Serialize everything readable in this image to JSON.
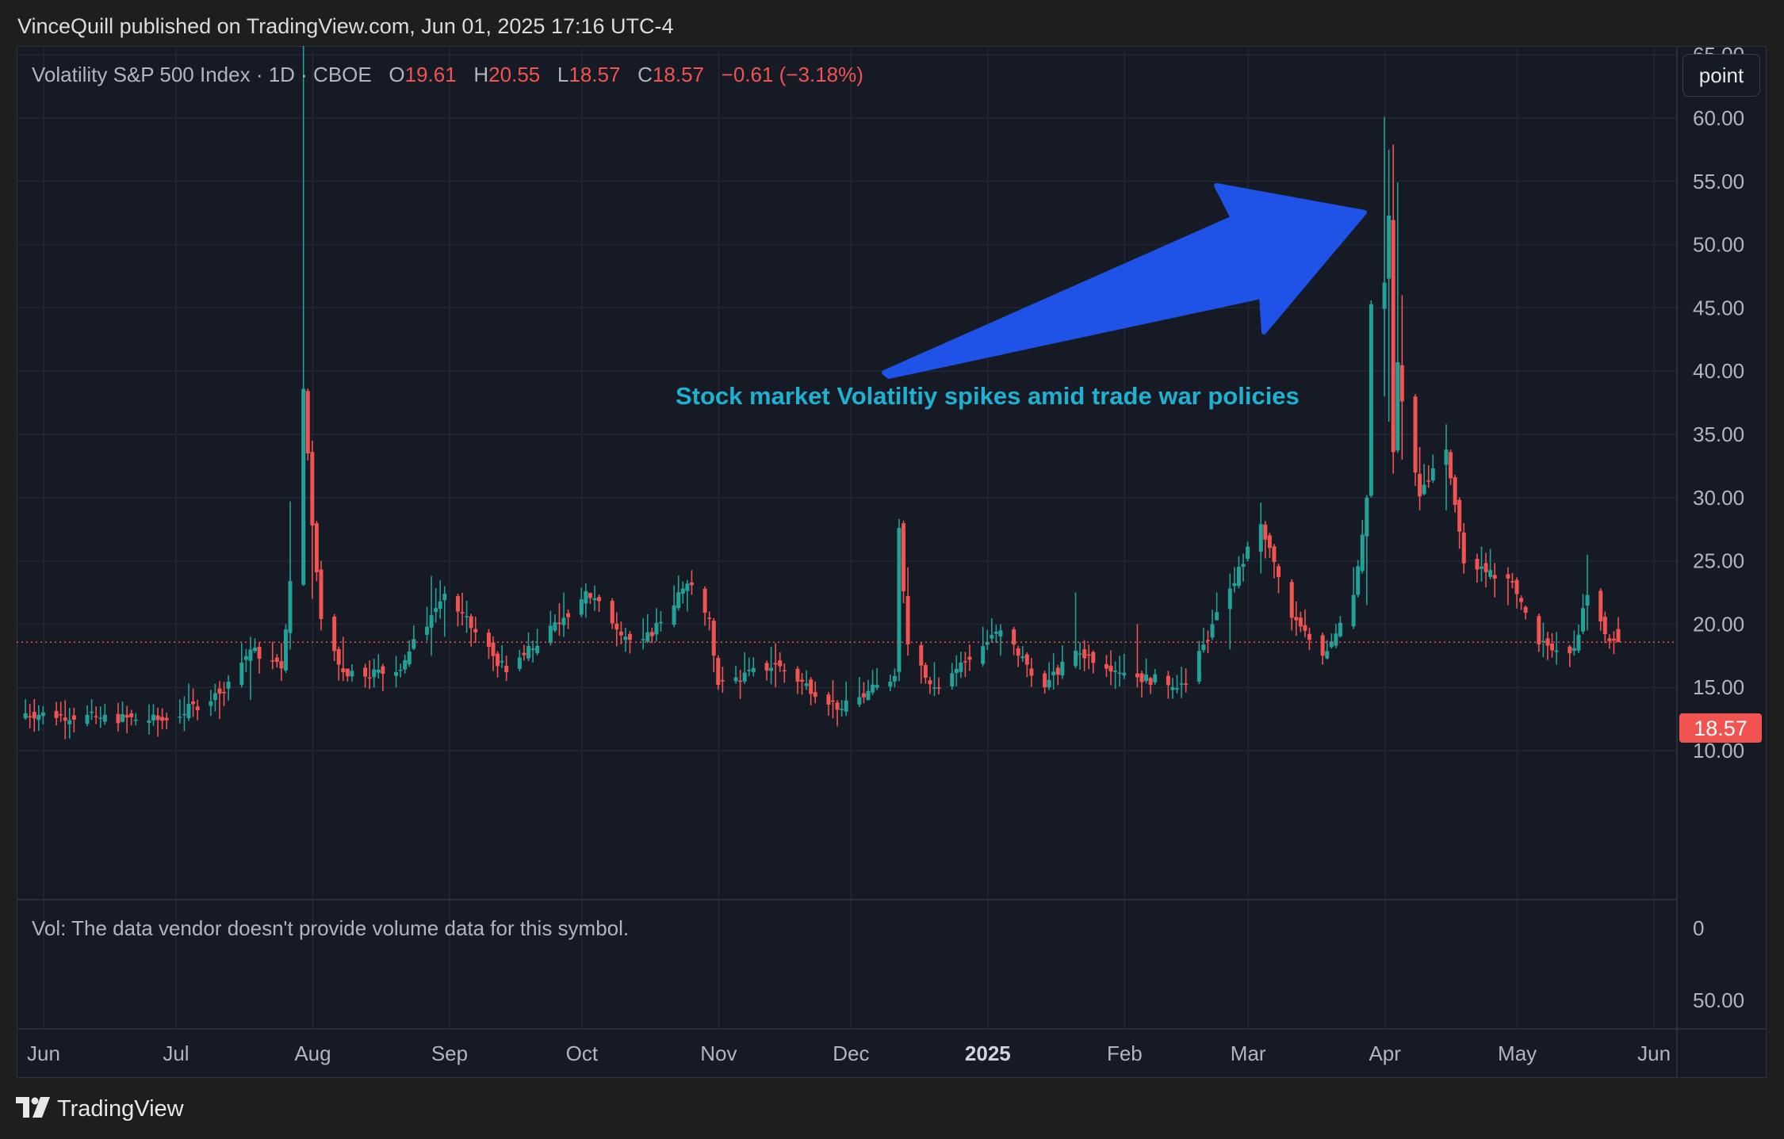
{
  "header": {
    "publisher": "VinceQuill published on TradingView.com, Jun 01, 2025 17:16 UTC-4"
  },
  "legend": {
    "symbol": "Volatility S&P 500 Index · 1D · CBOE",
    "o_label": "O",
    "o_value": "19.61",
    "h_label": "H",
    "h_value": "20.55",
    "l_label": "L",
    "l_value": "18.57",
    "c_label": "C",
    "c_value": "18.57",
    "change": "−0.61 (−3.18%)"
  },
  "toolbar": {
    "point_label": "point"
  },
  "annotation": {
    "text": "Stock market Volatiltiy spikes amid trade war policies"
  },
  "volume_pane": {
    "note": "Vol: The data vendor doesn't provide volume data for this symbol.",
    "ticks": [
      "0",
      "50.00"
    ]
  },
  "footer": {
    "brand": "TradingView"
  },
  "colors": {
    "up": "#22a198",
    "down": "#f05350",
    "arrow": "#1f52e6",
    "annotation": "#1fb1d2",
    "background": "#161a25"
  },
  "chart_data": {
    "type": "candlestick",
    "title": "Volatility S&P 500 Index · 1D · CBOE",
    "ylim": [
      6,
      70
    ],
    "y_ticks": [
      "65.00",
      "60.00",
      "55.00",
      "50.00",
      "45.00",
      "40.00",
      "35.00",
      "30.00",
      "25.00",
      "20.00",
      "15.00",
      "10.00"
    ],
    "x_ticks": [
      "Jun",
      "Jul",
      "Aug",
      "Sep",
      "Oct",
      "Nov",
      "Dec",
      "2025",
      "Feb",
      "Mar",
      "Apr",
      "May",
      "Jun"
    ],
    "last_price": "18.57",
    "date_range": [
      "2024-06-01",
      "2025-05-30"
    ],
    "grid": true,
    "legend_position": "top-left",
    "anchors": [
      {
        "d": "2024-06-01",
        "c": 13.0,
        "hi": 14.5,
        "lo": 12.0
      },
      {
        "d": "2024-06-20",
        "c": 12.6,
        "hi": 13.5,
        "lo": 11.8
      },
      {
        "d": "2024-07-05",
        "c": 12.4,
        "hi": 13.0,
        "lo": 11.7
      },
      {
        "d": "2024-07-17",
        "c": 14.5,
        "hi": 15.5,
        "lo": 12.5
      },
      {
        "d": "2024-07-24",
        "c": 18.0,
        "hi": 19.0,
        "lo": 14.0
      },
      {
        "d": "2024-07-31",
        "c": 16.5,
        "hi": 18.5,
        "lo": 15.5
      },
      {
        "d": "2024-08-02",
        "c": 23.4,
        "hi": 29.7,
        "lo": 18.0
      },
      {
        "d": "2024-08-05",
        "c": 38.6,
        "hi": 65.7,
        "lo": 23.0
      },
      {
        "d": "2024-08-07",
        "c": 27.8,
        "hi": 34.5,
        "lo": 22.0
      },
      {
        "d": "2024-08-09",
        "c": 20.4,
        "hi": 25.0,
        "lo": 19.5
      },
      {
        "d": "2024-08-14",
        "c": 16.2,
        "hi": 19.0,
        "lo": 15.5
      },
      {
        "d": "2024-08-26",
        "c": 16.2,
        "hi": 17.5,
        "lo": 15.0
      },
      {
        "d": "2024-09-03",
        "c": 20.7,
        "hi": 23.8,
        "lo": 17.5
      },
      {
        "d": "2024-09-06",
        "c": 22.4,
        "hi": 23.0,
        "lo": 19.0
      },
      {
        "d": "2024-09-20",
        "c": 16.2,
        "hi": 17.5,
        "lo": 15.5
      },
      {
        "d": "2024-10-03",
        "c": 20.5,
        "hi": 22.5,
        "lo": 19.0
      },
      {
        "d": "2024-10-08",
        "c": 22.6,
        "hi": 23.2,
        "lo": 20.5
      },
      {
        "d": "2024-10-20",
        "c": 18.0,
        "hi": 19.0,
        "lo": 17.2
      },
      {
        "d": "2024-10-31",
        "c": 23.2,
        "hi": 23.5,
        "lo": 21.0
      },
      {
        "d": "2024-11-05",
        "c": 20.5,
        "hi": 21.0,
        "lo": 19.5
      },
      {
        "d": "2024-11-07",
        "c": 15.2,
        "hi": 16.5,
        "lo": 14.8
      },
      {
        "d": "2024-11-20",
        "c": 16.8,
        "hi": 18.5,
        "lo": 15.0
      },
      {
        "d": "2024-12-05",
        "c": 13.3,
        "hi": 14.0,
        "lo": 12.7
      },
      {
        "d": "2024-12-17",
        "c": 15.9,
        "hi": 16.5,
        "lo": 15.0
      },
      {
        "d": "2024-12-18",
        "c": 27.6,
        "hi": 28.3,
        "lo": 15.5
      },
      {
        "d": "2024-12-20",
        "c": 18.4,
        "hi": 24.5,
        "lo": 17.5
      },
      {
        "d": "2024-12-26",
        "c": 15.0,
        "hi": 17.0,
        "lo": 14.3
      },
      {
        "d": "2025-01-10",
        "c": 19.5,
        "hi": 20.0,
        "lo": 17.5
      },
      {
        "d": "2025-01-20",
        "c": 15.0,
        "hi": 16.0,
        "lo": 14.5
      },
      {
        "d": "2025-01-27",
        "c": 17.9,
        "hi": 22.5,
        "lo": 16.5
      },
      {
        "d": "2025-02-10",
        "c": 15.8,
        "hi": 20.0,
        "lo": 15.0
      },
      {
        "d": "2025-02-21",
        "c": 15.2,
        "hi": 16.5,
        "lo": 14.6
      },
      {
        "d": "2025-03-03",
        "c": 22.8,
        "hi": 24.0,
        "lo": 18.0
      },
      {
        "d": "2025-03-10",
        "c": 27.9,
        "hi": 29.6,
        "lo": 24.0
      },
      {
        "d": "2025-03-17",
        "c": 20.5,
        "hi": 22.0,
        "lo": 19.5
      },
      {
        "d": "2025-03-24",
        "c": 17.5,
        "hi": 18.5,
        "lo": 16.8
      },
      {
        "d": "2025-03-31",
        "c": 22.3,
        "hi": 24.5,
        "lo": 21.0
      },
      {
        "d": "2025-04-03",
        "c": 30.0,
        "hi": 30.2,
        "lo": 21.5
      },
      {
        "d": "2025-04-04",
        "c": 45.3,
        "hi": 45.6,
        "lo": 30.0
      },
      {
        "d": "2025-04-07",
        "c": 47.0,
        "hi": 60.1,
        "lo": 38.0
      },
      {
        "d": "2025-04-08",
        "c": 52.3,
        "hi": 57.5,
        "lo": 36.0
      },
      {
        "d": "2025-04-09",
        "c": 33.6,
        "hi": 57.9,
        "lo": 31.9
      },
      {
        "d": "2025-04-10",
        "c": 40.7,
        "hi": 54.9,
        "lo": 34.0
      },
      {
        "d": "2025-04-11",
        "c": 37.6,
        "hi": 46.0,
        "lo": 33.0
      },
      {
        "d": "2025-04-15",
        "c": 30.1,
        "hi": 34.0,
        "lo": 29.0
      },
      {
        "d": "2025-04-21",
        "c": 33.8,
        "hi": 35.8,
        "lo": 29.0
      },
      {
        "d": "2025-04-25",
        "c": 24.8,
        "hi": 28.0,
        "lo": 24.0
      },
      {
        "d": "2025-05-05",
        "c": 23.6,
        "hi": 24.5,
        "lo": 21.5
      },
      {
        "d": "2025-05-12",
        "c": 18.4,
        "hi": 20.5,
        "lo": 17.8
      },
      {
        "d": "2025-05-20",
        "c": 18.1,
        "hi": 19.5,
        "lo": 17.5
      },
      {
        "d": "2025-05-23",
        "c": 22.3,
        "hi": 25.5,
        "lo": 19.5
      },
      {
        "d": "2025-05-27",
        "c": 19.2,
        "hi": 21.0,
        "lo": 18.5
      },
      {
        "d": "2025-05-30",
        "c": 18.57,
        "hi": 20.55,
        "lo": 18.57
      }
    ]
  }
}
